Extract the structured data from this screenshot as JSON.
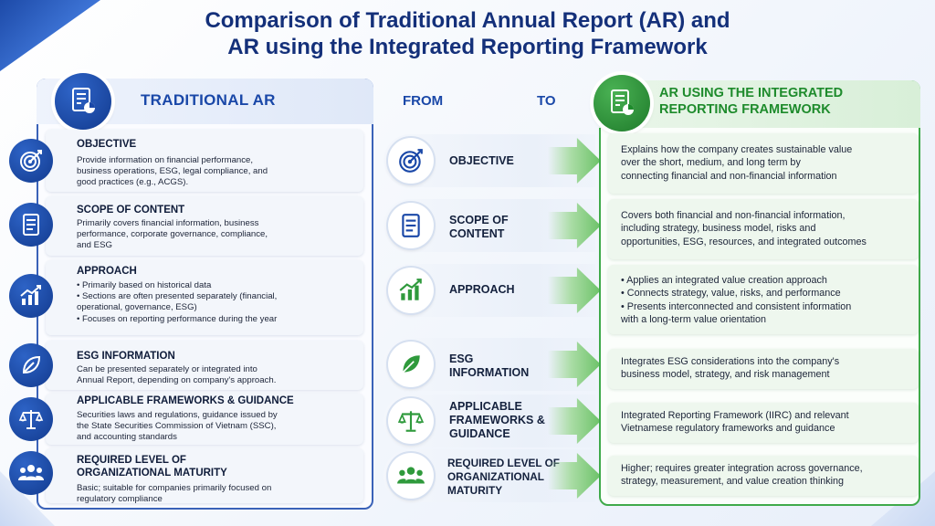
{
  "title_line1": "Comparison of Traditional Annual Report (AR) and",
  "title_line2": "AR using the Integrated Reporting Framework",
  "left_header": "TRADITIONAL AR",
  "from_label": "FROM",
  "to_label": "TO",
  "right_header_line1": "AR USING THE INTEGRATED",
  "right_header_line2": "REPORTING FRAMEWORK",
  "left_items": [
    {
      "title": "OBJECTIVE",
      "icon": "target-icon",
      "lines": [
        "Provide information on financial performance,",
        "business operations, ESG, legal compliance, and",
        "good practices (e.g., ACGS)."
      ]
    },
    {
      "title": "SCOPE OF CONTENT",
      "icon": "document-icon",
      "lines": [
        "Primarily covers financial information, business",
        "performance, corporate governance, compliance,",
        "and ESG"
      ]
    },
    {
      "title": "APPROACH",
      "icon": "chart-growth-icon",
      "lines": [
        "• Primarily based on historical data",
        "• Sections are often presented separately (financial,",
        "operational, governance, ESG)",
        "• Focuses on reporting performance during the year"
      ]
    },
    {
      "title": "ESG INFORMATION",
      "icon": "leaf-icon",
      "lines": [
        "Can be presented separately or integrated into",
        "Annual Report, depending on company's approach."
      ]
    },
    {
      "title": "APPLICABLE FRAMEWORKS & GUIDANCE",
      "icon": "scales-icon",
      "lines": [
        "Securities laws and regulations, guidance issued by",
        "the State Securities Commission of Vietnam (SSC),",
        "and accounting standards"
      ]
    },
    {
      "title_lines": [
        "REQUIRED LEVEL OF",
        "ORGANIZATIONAL MATURITY"
      ],
      "icon": "people-icon",
      "lines": [
        "Basic; suitable for companies primarily focused on",
        "regulatory compliance"
      ]
    }
  ],
  "mid_items": [
    {
      "lines": [
        "OBJECTIVE"
      ],
      "icon": "target-icon"
    },
    {
      "lines": [
        "SCOPE OF",
        "CONTENT"
      ],
      "icon": "document-icon"
    },
    {
      "lines": [
        "APPROACH"
      ],
      "icon": "chart-growth-icon"
    },
    {
      "lines": [
        "ESG",
        "INFORMATION"
      ],
      "icon": "leaf-icon"
    },
    {
      "lines": [
        "APPLICABLE",
        "FRAMEWORKS &",
        "GUIDANCE"
      ],
      "icon": "scales-icon"
    },
    {
      "lines": [
        "REQUIRED LEVEL OF",
        "ORGANIZATIONAL",
        "MATURITY"
      ],
      "icon": "people-icon"
    }
  ],
  "right_items": [
    {
      "lines": [
        "Explains how the company creates sustainable value",
        "over the short, medium, and long term by",
        "connecting financial and non-financial information"
      ]
    },
    {
      "lines": [
        "Covers both financial and non-financial information,",
        "including strategy, business model, risks and",
        "opportunities, ESG, resources, and integrated outcomes"
      ]
    },
    {
      "lines": [
        "• Applies an integrated value creation approach",
        "• Connects strategy, value, risks, and performance",
        "• Presents interconnected and consistent information",
        "with a long-term value orientation"
      ]
    },
    {
      "lines": [
        "Integrates ESG considerations into the company's",
        "business model, strategy, and risk management"
      ]
    },
    {
      "lines": [
        "Integrated Reporting Framework (IIRC) and relevant",
        "Vietnamese regulatory frameworks and guidance"
      ]
    },
    {
      "lines": [
        "Higher; requires greater integration across governance,",
        "strategy, measurement, and value creation thinking"
      ]
    }
  ],
  "colors": {
    "navy": "#14307a",
    "blue": "#1a48a8",
    "green": "#1e8b2c"
  }
}
